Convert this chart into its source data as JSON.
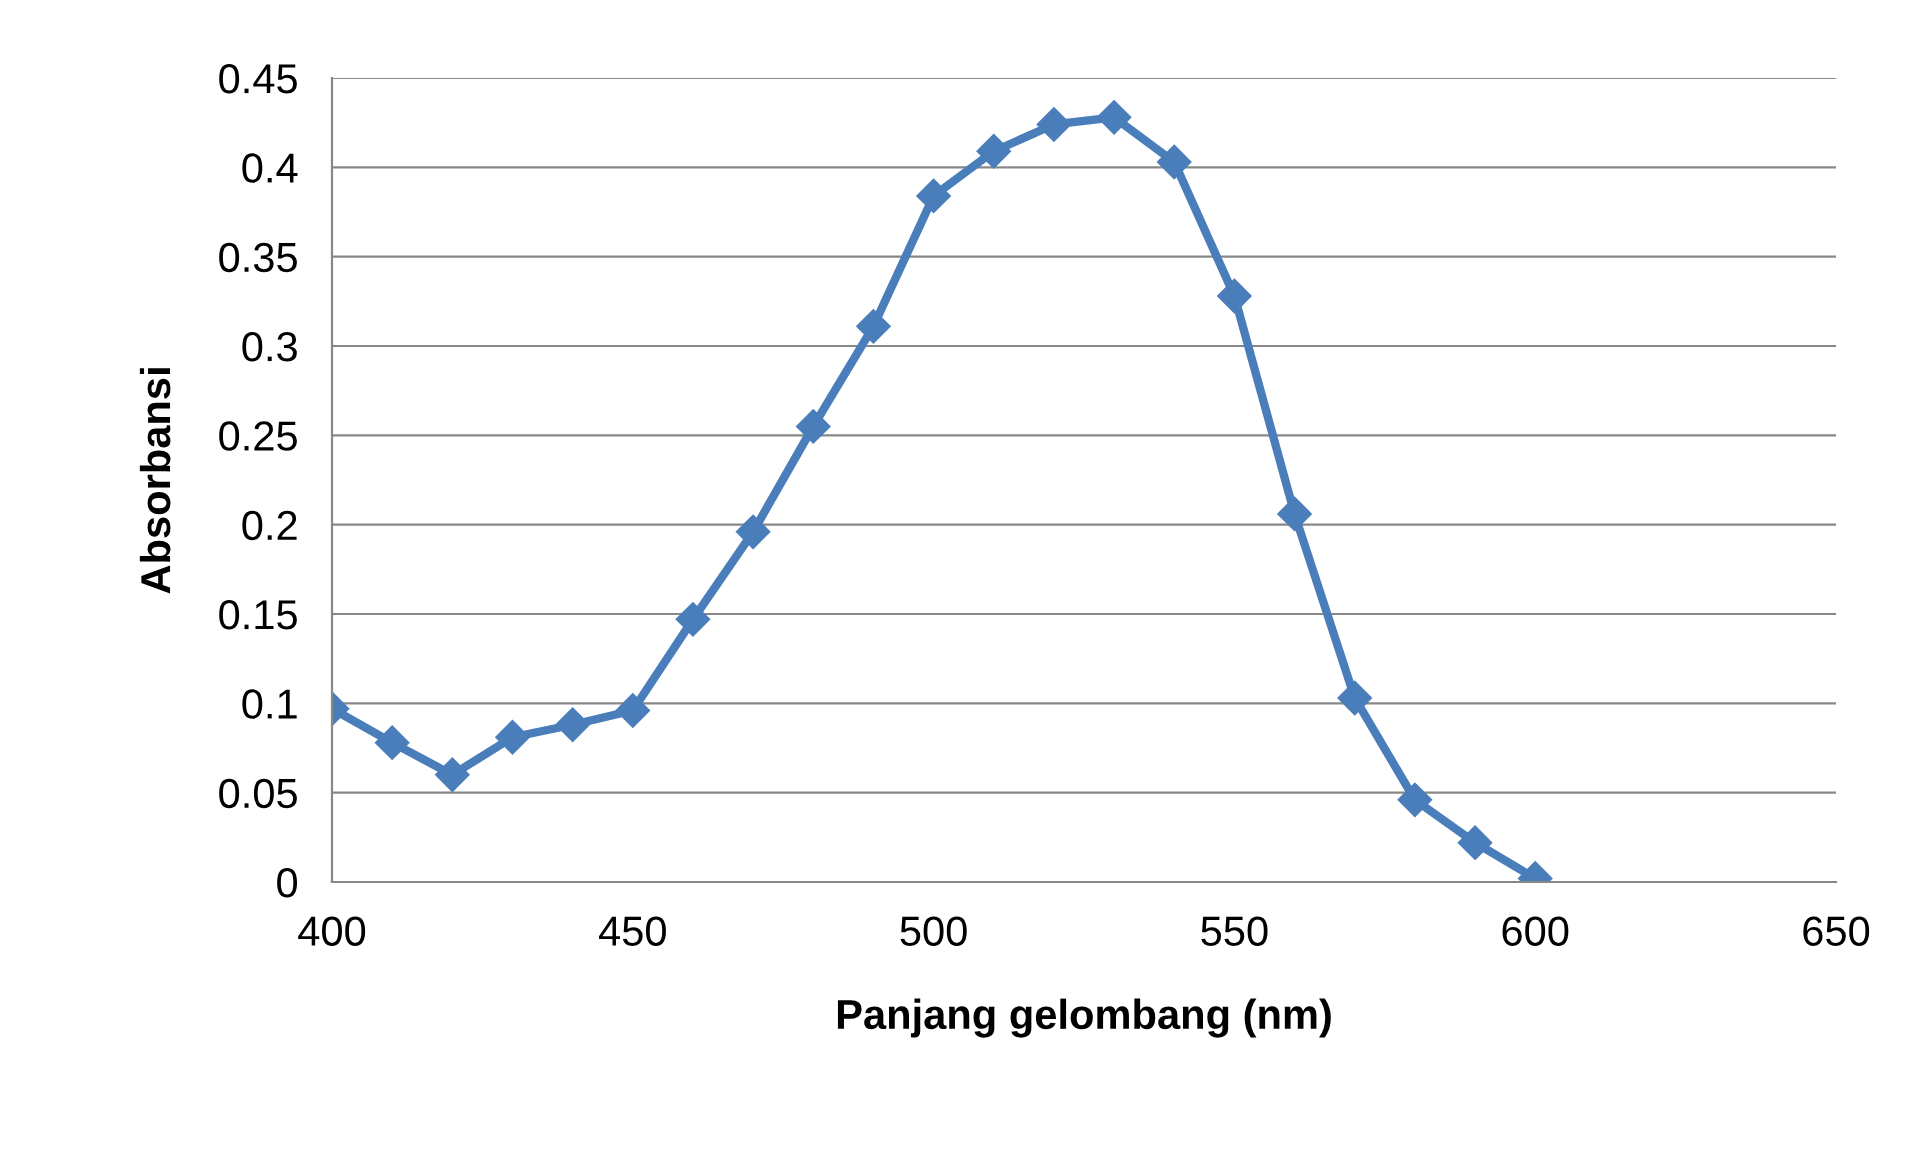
{
  "chart_data": {
    "type": "line",
    "xlabel": "Panjang gelombang (nm)",
    "ylabel": "Absorbansi",
    "x": [
      400,
      410,
      420,
      430,
      440,
      450,
      460,
      470,
      480,
      490,
      500,
      510,
      520,
      530,
      540,
      550,
      560,
      570,
      580,
      590,
      600
    ],
    "series": [
      {
        "color": "#4a7ebb",
        "values": [
          0.097,
          0.078,
          0.06,
          0.081,
          0.088,
          0.096,
          0.147,
          0.196,
          0.255,
          0.311,
          0.384,
          0.409,
          0.424,
          0.428,
          0.403,
          0.328,
          0.206,
          0.103,
          0.046,
          0.022,
          0.002
        ]
      }
    ],
    "xlim": [
      400,
      650
    ],
    "xticks": [
      400,
      450,
      500,
      550,
      600,
      650
    ],
    "ylim": [
      0,
      0.45
    ],
    "yticks": [
      {
        "value": 0,
        "label": "0"
      },
      0.05,
      {
        "value": 0.1,
        "label": "0.1"
      },
      0.15,
      {
        "value": 0.2,
        "label": "0.2"
      },
      0.25,
      {
        "value": 0.3,
        "label": "0.3"
      },
      0.35,
      {
        "value": 0.4,
        "label": "0.4"
      },
      0.45
    ],
    "grid": "y",
    "marker": "diamond",
    "line_style": "solid",
    "legend": false
  }
}
